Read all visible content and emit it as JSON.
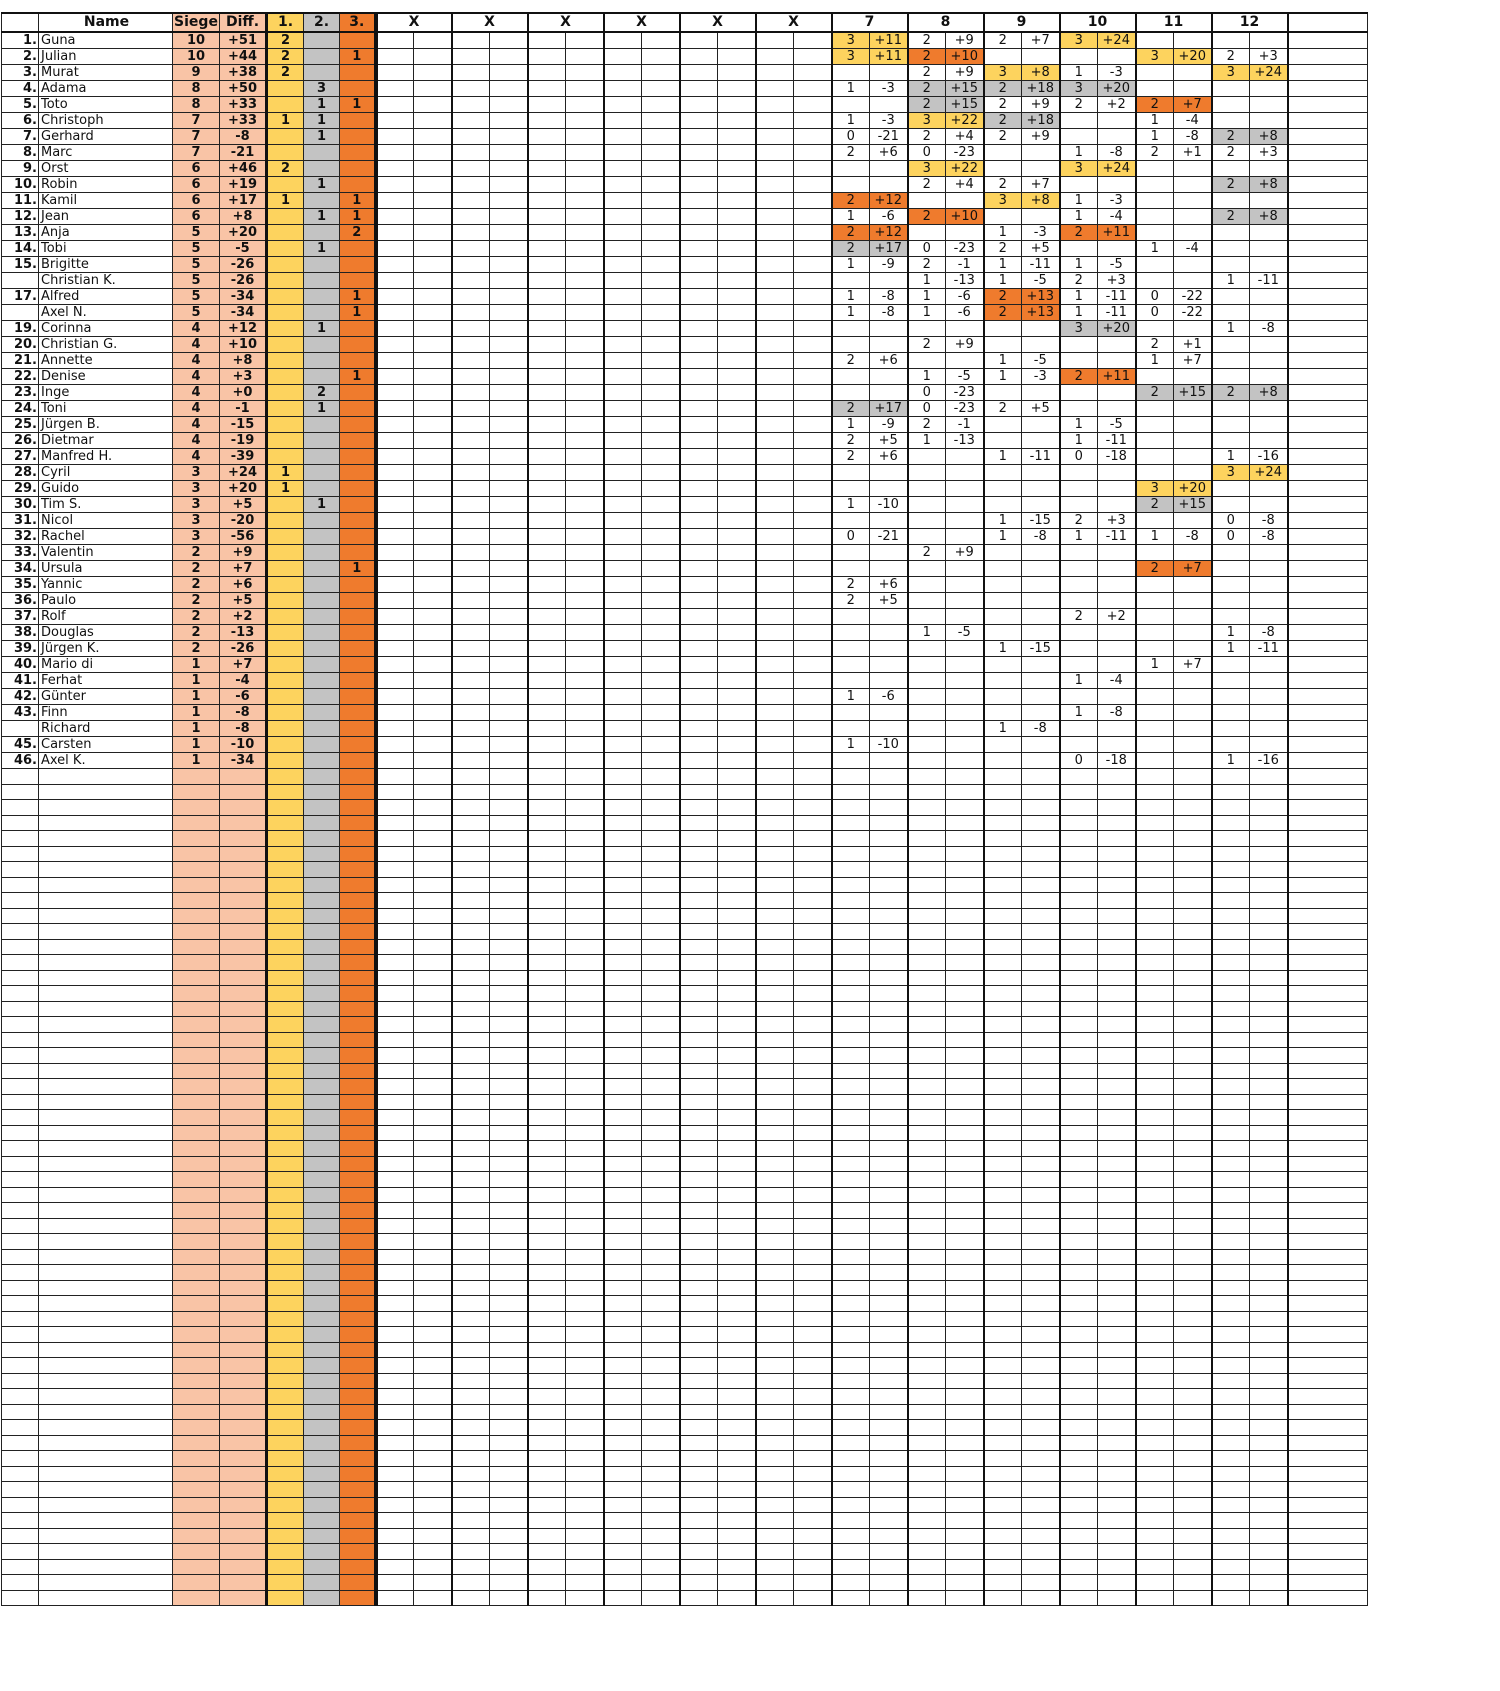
{
  "headers": {
    "name": "Name",
    "siege": "Siege",
    "diff": "Diff.",
    "p1": "1.",
    "p2": "2.",
    "p3": "3.",
    "empty_rounds": [
      "X",
      "X",
      "X",
      "X",
      "X",
      "X"
    ],
    "rounds": [
      "7",
      "8",
      "9",
      "10",
      "11",
      "12"
    ]
  },
  "colors": {
    "place1": "#fdd35e",
    "place2": "#c3c3c3",
    "place3": "#ef7b2d",
    "totals": "#f9c4a6"
  },
  "total_rows": 100,
  "players": [
    {
      "rank": "1.",
      "name": "Guna",
      "siege": "10",
      "diff": "+51",
      "p1": "2",
      "p2": "",
      "p3": "",
      "r": [
        [
          "3",
          "+11",
          1
        ],
        [
          "2",
          "+9",
          0
        ],
        [
          "2",
          "+7",
          0
        ],
        [
          "3",
          "+24",
          1
        ],
        null,
        null
      ]
    },
    {
      "rank": "2.",
      "name": "Julian",
      "siege": "10",
      "diff": "+44",
      "p1": "2",
      "p2": "",
      "p3": "1",
      "r": [
        [
          "3",
          "+11",
          1
        ],
        [
          "2",
          "+10",
          3
        ],
        null,
        null,
        [
          "3",
          "+20",
          1
        ],
        [
          "2",
          "+3",
          0
        ]
      ]
    },
    {
      "rank": "3.",
      "name": "Murat",
      "siege": "9",
      "diff": "+38",
      "p1": "2",
      "p2": "",
      "p3": "",
      "r": [
        null,
        [
          "2",
          "+9",
          0
        ],
        [
          "3",
          "+8",
          1
        ],
        [
          "1",
          "-3",
          0
        ],
        null,
        [
          "3",
          "+24",
          1
        ]
      ]
    },
    {
      "rank": "4.",
      "name": "Adama",
      "siege": "8",
      "diff": "+50",
      "p1": "",
      "p2": "3",
      "p3": "",
      "r": [
        [
          "1",
          "-3",
          0
        ],
        [
          "2",
          "+15",
          2
        ],
        [
          "2",
          "+18",
          2
        ],
        [
          "3",
          "+20",
          2
        ],
        null,
        null
      ]
    },
    {
      "rank": "5.",
      "name": "Toto",
      "siege": "8",
      "diff": "+33",
      "p1": "",
      "p2": "1",
      "p3": "1",
      "r": [
        null,
        [
          "2",
          "+15",
          2
        ],
        [
          "2",
          "+9",
          0
        ],
        [
          "2",
          "+2",
          0
        ],
        [
          "2",
          "+7",
          3
        ],
        null
      ]
    },
    {
      "rank": "6.",
      "name": "Christoph",
      "siege": "7",
      "diff": "+33",
      "p1": "1",
      "p2": "1",
      "p3": "",
      "r": [
        [
          "1",
          "-3",
          0
        ],
        [
          "3",
          "+22",
          1
        ],
        [
          "2",
          "+18",
          2
        ],
        null,
        [
          "1",
          "-4",
          0
        ],
        null
      ]
    },
    {
      "rank": "7.",
      "name": "Gerhard",
      "siege": "7",
      "diff": "-8",
      "p1": "",
      "p2": "1",
      "p3": "",
      "r": [
        [
          "0",
          "-21",
          0
        ],
        [
          "2",
          "+4",
          0
        ],
        [
          "2",
          "+9",
          0
        ],
        null,
        [
          "1",
          "-8",
          0
        ],
        [
          "2",
          "+8",
          2
        ]
      ]
    },
    {
      "rank": "8.",
      "name": "Marc",
      "siege": "7",
      "diff": "-21",
      "p1": "",
      "p2": "",
      "p3": "",
      "r": [
        [
          "2",
          "+6",
          0
        ],
        [
          "0",
          "-23",
          0
        ],
        null,
        [
          "1",
          "-8",
          0
        ],
        [
          "2",
          "+1",
          0
        ],
        [
          "2",
          "+3",
          0
        ]
      ]
    },
    {
      "rank": "9.",
      "name": "Orst",
      "siege": "6",
      "diff": "+46",
      "p1": "2",
      "p2": "",
      "p3": "",
      "r": [
        null,
        [
          "3",
          "+22",
          1
        ],
        null,
        [
          "3",
          "+24",
          1
        ],
        null,
        null
      ]
    },
    {
      "rank": "10.",
      "name": "Robin",
      "siege": "6",
      "diff": "+19",
      "p1": "",
      "p2": "1",
      "p3": "",
      "r": [
        null,
        [
          "2",
          "+4",
          0
        ],
        [
          "2",
          "+7",
          0
        ],
        null,
        null,
        [
          "2",
          "+8",
          2
        ]
      ]
    },
    {
      "rank": "11.",
      "name": "Kamil",
      "siege": "6",
      "diff": "+17",
      "p1": "1",
      "p2": "",
      "p3": "1",
      "r": [
        [
          "2",
          "+12",
          3
        ],
        null,
        [
          "3",
          "+8",
          1
        ],
        [
          "1",
          "-3",
          0
        ],
        null,
        null
      ]
    },
    {
      "rank": "12.",
      "name": "Jean",
      "siege": "6",
      "diff": "+8",
      "p1": "",
      "p2": "1",
      "p3": "1",
      "r": [
        [
          "1",
          "-6",
          0
        ],
        [
          "2",
          "+10",
          3
        ],
        null,
        [
          "1",
          "-4",
          0
        ],
        null,
        [
          "2",
          "+8",
          2
        ]
      ]
    },
    {
      "rank": "13.",
      "name": "Anja",
      "siege": "5",
      "diff": "+20",
      "p1": "",
      "p2": "",
      "p3": "2",
      "r": [
        [
          "2",
          "+12",
          3
        ],
        null,
        [
          "1",
          "-3",
          0
        ],
        [
          "2",
          "+11",
          3
        ],
        null,
        null
      ]
    },
    {
      "rank": "14.",
      "name": "Tobi",
      "siege": "5",
      "diff": "-5",
      "p1": "",
      "p2": "1",
      "p3": "",
      "r": [
        [
          "2",
          "+17",
          2
        ],
        [
          "0",
          "-23",
          0
        ],
        [
          "2",
          "+5",
          0
        ],
        null,
        [
          "1",
          "-4",
          0
        ],
        null
      ]
    },
    {
      "rank": "15.",
      "name": "Brigitte",
      "siege": "5",
      "diff": "-26",
      "p1": "",
      "p2": "",
      "p3": "",
      "r": [
        [
          "1",
          "-9",
          0
        ],
        [
          "2",
          "-1",
          0
        ],
        [
          "1",
          "-11",
          0
        ],
        [
          "1",
          "-5",
          0
        ],
        null,
        null
      ]
    },
    {
      "rank": "",
      "name": "Christian K.",
      "siege": "5",
      "diff": "-26",
      "p1": "",
      "p2": "",
      "p3": "",
      "r": [
        null,
        [
          "1",
          "-13",
          0
        ],
        [
          "1",
          "-5",
          0
        ],
        [
          "2",
          "+3",
          0
        ],
        null,
        [
          "1",
          "-11",
          0
        ]
      ]
    },
    {
      "rank": "17.",
      "name": "Alfred",
      "siege": "5",
      "diff": "-34",
      "p1": "",
      "p2": "",
      "p3": "1",
      "r": [
        [
          "1",
          "-8",
          0
        ],
        [
          "1",
          "-6",
          0
        ],
        [
          "2",
          "+13",
          3
        ],
        [
          "1",
          "-11",
          0
        ],
        [
          "0",
          "-22",
          0
        ],
        null
      ]
    },
    {
      "rank": "",
      "name": "Axel N.",
      "siege": "5",
      "diff": "-34",
      "p1": "",
      "p2": "",
      "p3": "1",
      "r": [
        [
          "1",
          "-8",
          0
        ],
        [
          "1",
          "-6",
          0
        ],
        [
          "2",
          "+13",
          3
        ],
        [
          "1",
          "-11",
          0
        ],
        [
          "0",
          "-22",
          0
        ],
        null
      ]
    },
    {
      "rank": "19.",
      "name": "Corinna",
      "siege": "4",
      "diff": "+12",
      "p1": "",
      "p2": "1",
      "p3": "",
      "r": [
        null,
        null,
        null,
        [
          "3",
          "+20",
          2
        ],
        null,
        [
          "1",
          "-8",
          0
        ]
      ]
    },
    {
      "rank": "20.",
      "name": "Christian G.",
      "siege": "4",
      "diff": "+10",
      "p1": "",
      "p2": "",
      "p3": "",
      "r": [
        null,
        [
          "2",
          "+9",
          0
        ],
        null,
        null,
        [
          "2",
          "+1",
          0
        ],
        null
      ]
    },
    {
      "rank": "21.",
      "name": "Annette",
      "siege": "4",
      "diff": "+8",
      "p1": "",
      "p2": "",
      "p3": "",
      "r": [
        [
          "2",
          "+6",
          0
        ],
        null,
        [
          "1",
          "-5",
          0
        ],
        null,
        [
          "1",
          "+7",
          0
        ],
        null
      ]
    },
    {
      "rank": "22.",
      "name": "Denise",
      "siege": "4",
      "diff": "+3",
      "p1": "",
      "p2": "",
      "p3": "1",
      "r": [
        null,
        [
          "1",
          "-5",
          0
        ],
        [
          "1",
          "-3",
          0
        ],
        [
          "2",
          "+11",
          3
        ],
        null,
        null
      ]
    },
    {
      "rank": "23.",
      "name": "Inge",
      "siege": "4",
      "diff": "+0",
      "p1": "",
      "p2": "2",
      "p3": "",
      "r": [
        null,
        [
          "0",
          "-23",
          0
        ],
        null,
        null,
        [
          "2",
          "+15",
          2
        ],
        [
          "2",
          "+8",
          2
        ]
      ]
    },
    {
      "rank": "24.",
      "name": "Toni",
      "siege": "4",
      "diff": "-1",
      "p1": "",
      "p2": "1",
      "p3": "",
      "r": [
        [
          "2",
          "+17",
          2
        ],
        [
          "0",
          "-23",
          0
        ],
        [
          "2",
          "+5",
          0
        ],
        null,
        null,
        null
      ]
    },
    {
      "rank": "25.",
      "name": "Jürgen B.",
      "siege": "4",
      "diff": "-15",
      "p1": "",
      "p2": "",
      "p3": "",
      "r": [
        [
          "1",
          "-9",
          0
        ],
        [
          "2",
          "-1",
          0
        ],
        null,
        [
          "1",
          "-5",
          0
        ],
        null,
        null
      ]
    },
    {
      "rank": "26.",
      "name": "Dietmar",
      "siege": "4",
      "diff": "-19",
      "p1": "",
      "p2": "",
      "p3": "",
      "r": [
        [
          "2",
          "+5",
          0
        ],
        [
          "1",
          "-13",
          0
        ],
        null,
        [
          "1",
          "-11",
          0
        ],
        null,
        null
      ]
    },
    {
      "rank": "27.",
      "name": "Manfred H.",
      "siege": "4",
      "diff": "-39",
      "p1": "",
      "p2": "",
      "p3": "",
      "r": [
        [
          "2",
          "+6",
          0
        ],
        null,
        [
          "1",
          "-11",
          0
        ],
        [
          "0",
          "-18",
          0
        ],
        null,
        [
          "1",
          "-16",
          0
        ]
      ]
    },
    {
      "rank": "28.",
      "name": "Cyril",
      "siege": "3",
      "diff": "+24",
      "p1": "1",
      "p2": "",
      "p3": "",
      "r": [
        null,
        null,
        null,
        null,
        null,
        [
          "3",
          "+24",
          1
        ]
      ]
    },
    {
      "rank": "29.",
      "name": "Guido",
      "siege": "3",
      "diff": "+20",
      "p1": "1",
      "p2": "",
      "p3": "",
      "r": [
        null,
        null,
        null,
        null,
        [
          "3",
          "+20",
          1
        ],
        null
      ]
    },
    {
      "rank": "30.",
      "name": "Tim S.",
      "siege": "3",
      "diff": "+5",
      "p1": "",
      "p2": "1",
      "p3": "",
      "r": [
        [
          "1",
          "-10",
          0
        ],
        null,
        null,
        null,
        [
          "2",
          "+15",
          2
        ],
        null
      ]
    },
    {
      "rank": "31.",
      "name": "Nicol",
      "siege": "3",
      "diff": "-20",
      "p1": "",
      "p2": "",
      "p3": "",
      "r": [
        null,
        null,
        [
          "1",
          "-15",
          0
        ],
        [
          "2",
          "+3",
          0
        ],
        null,
        [
          "0",
          "-8",
          0
        ]
      ]
    },
    {
      "rank": "32.",
      "name": "Rachel",
      "siege": "3",
      "diff": "-56",
      "p1": "",
      "p2": "",
      "p3": "",
      "r": [
        [
          "0",
          "-21",
          0
        ],
        null,
        [
          "1",
          "-8",
          0
        ],
        [
          "1",
          "-11",
          0
        ],
        [
          "1",
          "-8",
          0
        ],
        [
          "0",
          "-8",
          0
        ]
      ]
    },
    {
      "rank": "33.",
      "name": "Valentin",
      "siege": "2",
      "diff": "+9",
      "p1": "",
      "p2": "",
      "p3": "",
      "r": [
        null,
        [
          "2",
          "+9",
          0
        ],
        null,
        null,
        null,
        null
      ]
    },
    {
      "rank": "34.",
      "name": "Ursula",
      "siege": "2",
      "diff": "+7",
      "p1": "",
      "p2": "",
      "p3": "1",
      "r": [
        null,
        null,
        null,
        null,
        [
          "2",
          "+7",
          3
        ],
        null
      ]
    },
    {
      "rank": "35.",
      "name": "Yannic",
      "siege": "2",
      "diff": "+6",
      "p1": "",
      "p2": "",
      "p3": "",
      "r": [
        [
          "2",
          "+6",
          0
        ],
        null,
        null,
        null,
        null,
        null
      ]
    },
    {
      "rank": "36.",
      "name": "Paulo",
      "siege": "2",
      "diff": "+5",
      "p1": "",
      "p2": "",
      "p3": "",
      "r": [
        [
          "2",
          "+5",
          0
        ],
        null,
        null,
        null,
        null,
        null
      ]
    },
    {
      "rank": "37.",
      "name": "Rolf",
      "siege": "2",
      "diff": "+2",
      "p1": "",
      "p2": "",
      "p3": "",
      "r": [
        null,
        null,
        null,
        [
          "2",
          "+2",
          0
        ],
        null,
        null
      ]
    },
    {
      "rank": "38.",
      "name": "Douglas",
      "siege": "2",
      "diff": "-13",
      "p1": "",
      "p2": "",
      "p3": "",
      "r": [
        null,
        [
          "1",
          "-5",
          0
        ],
        null,
        null,
        null,
        [
          "1",
          "-8",
          0
        ]
      ]
    },
    {
      "rank": "39.",
      "name": "Jürgen K.",
      "siege": "2",
      "diff": "-26",
      "p1": "",
      "p2": "",
      "p3": "",
      "r": [
        null,
        null,
        [
          "1",
          "-15",
          0
        ],
        null,
        null,
        [
          "1",
          "-11",
          0
        ]
      ]
    },
    {
      "rank": "40.",
      "name": "Mario di",
      "siege": "1",
      "diff": "+7",
      "p1": "",
      "p2": "",
      "p3": "",
      "r": [
        null,
        null,
        null,
        null,
        [
          "1",
          "+7",
          0
        ],
        null
      ]
    },
    {
      "rank": "41.",
      "name": "Ferhat",
      "siege": "1",
      "diff": "-4",
      "p1": "",
      "p2": "",
      "p3": "",
      "r": [
        null,
        null,
        null,
        [
          "1",
          "-4",
          0
        ],
        null,
        null
      ]
    },
    {
      "rank": "42.",
      "name": "Günter",
      "siege": "1",
      "diff": "-6",
      "p1": "",
      "p2": "",
      "p3": "",
      "r": [
        [
          "1",
          "-6",
          0
        ],
        null,
        null,
        null,
        null,
        null
      ]
    },
    {
      "rank": "43.",
      "name": "Finn",
      "siege": "1",
      "diff": "-8",
      "p1": "",
      "p2": "",
      "p3": "",
      "r": [
        null,
        null,
        null,
        [
          "1",
          "-8",
          0
        ],
        null,
        null
      ]
    },
    {
      "rank": "",
      "name": "Richard",
      "siege": "1",
      "diff": "-8",
      "p1": "",
      "p2": "",
      "p3": "",
      "r": [
        null,
        null,
        [
          "1",
          "-8",
          0
        ],
        null,
        null,
        null
      ]
    },
    {
      "rank": "45.",
      "name": "Carsten",
      "siege": "1",
      "diff": "-10",
      "p1": "",
      "p2": "",
      "p3": "",
      "r": [
        [
          "1",
          "-10",
          0
        ],
        null,
        null,
        null,
        null,
        null
      ]
    },
    {
      "rank": "46.",
      "name": "Axel K.",
      "siege": "1",
      "diff": "-34",
      "p1": "",
      "p2": "",
      "p3": "",
      "r": [
        null,
        null,
        null,
        [
          "0",
          "-18",
          0
        ],
        null,
        [
          "1",
          "-16",
          0
        ]
      ]
    }
  ]
}
